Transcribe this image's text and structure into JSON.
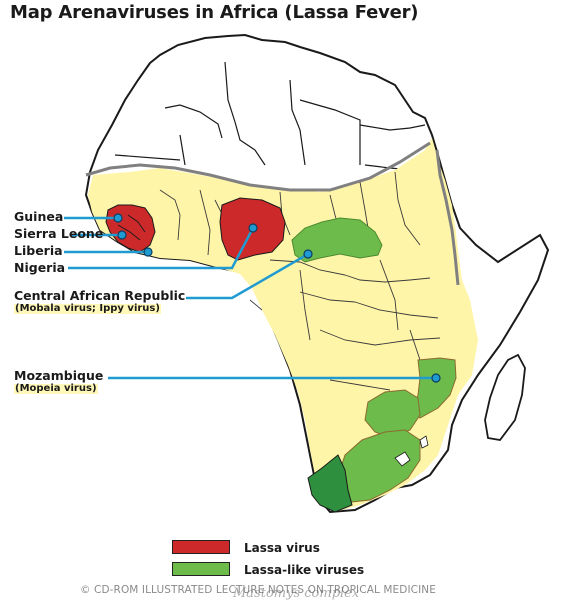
{
  "title": "Map Arenaviruses in Africa (Lassa Fever)",
  "labels": {
    "guinea": "Guinea",
    "sierra_leone": "Sierra Leone",
    "liberia": "Liberia",
    "nigeria": "Nigeria",
    "car": "Central African Republic",
    "car_sub": "(Mobala virus; Ippy virus)",
    "mozambique": "Mozambique",
    "mozambique_sub": "(Mopeia virus)"
  },
  "legend": [
    {
      "label": "Lassa virus",
      "color": "#cc2a2a"
    },
    {
      "label": "Lassa-like viruses",
      "color": "#6dbb4a"
    }
  ],
  "footer": {
    "copyright": "© CD-ROM ILLUSTRATED LECTURE NOTES ON TROPICAL MEDICINE",
    "overlay": "Mastomys complex"
  },
  "colors": {
    "endemic_zone": "#fff5a8",
    "lassa": "#cc2a2a",
    "lassa_like": "#6dbb4a",
    "dark_green": "#2e8f3e",
    "leader": "#1f9bd1",
    "zone_border": "#808080"
  }
}
